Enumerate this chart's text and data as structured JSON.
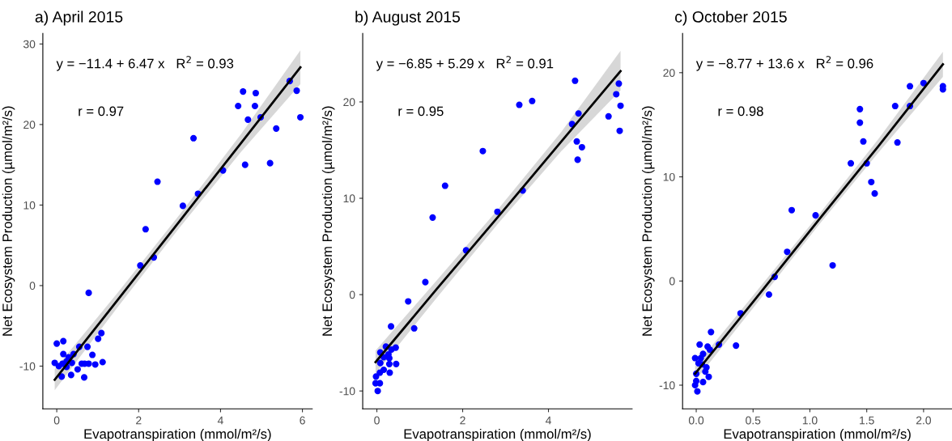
{
  "chart_data": [
    {
      "type": "scatter",
      "title": "a) April 2015",
      "xlabel": "Evapotranspiration (mmol/m²/s)",
      "ylabel": "Net Ecosystem Production (µmol/m²/s)",
      "annotations": [
        "y = −11.4 + 6.47 x   R$^{2}$ = 0.93",
        "r = 0.97"
      ],
      "xlim": [
        -0.34,
        6.24
      ],
      "ylim": [
        -15.3,
        31.3
      ],
      "xticks": [
        0,
        2,
        4,
        6
      ],
      "yticks": [
        -10,
        0,
        10,
        20,
        30
      ],
      "grid": false,
      "series": [
        {
          "marker": "circle",
          "color": "#0000ff",
          "x": [
            0.78,
            0,
            0.16,
            1.09,
            1.01,
            0.55,
            0.75,
            0.16,
            0.41,
            0.29,
            0.87,
            -0.05,
            0.05,
            0.14,
            0.24,
            0.37,
            0.24,
            0.61,
            0.68,
            0.78,
            0.94,
            1.12,
            0.51,
            0.12,
            0.35,
            0.67,
            2.04,
            2.37,
            2.17,
            2.46,
            3.08,
            3.45,
            3.34,
            4.06,
            4.43,
            4.55,
            4.6,
            4.67,
            4.86,
            4.84,
            4.98,
            5.21,
            5.36,
            5.69,
            5.86,
            5.95
          ],
          "values": [
            -0.9,
            -7.2,
            -6.9,
            -5.9,
            -6.6,
            -7.6,
            -7.6,
            -8.5,
            -8.5,
            -8.9,
            -8.6,
            -9.6,
            -10.0,
            -9.7,
            -9.4,
            -9.6,
            -10.1,
            -9.7,
            -9.7,
            -9.7,
            -9.8,
            -9.5,
            -10.4,
            -11.3,
            -11.1,
            -11.4,
            2.5,
            3.5,
            7.0,
            12.9,
            9.9,
            11.4,
            18.3,
            14.3,
            22.3,
            24.1,
            15.0,
            20.6,
            23.9,
            22.3,
            20.9,
            15.2,
            19.5,
            25.4,
            24.2,
            20.9
          ]
        },
        {
          "type": "line",
          "color": "#000000",
          "x": [
            -0.05,
            1.5,
            3,
            4.5,
            5.95
          ],
          "values": [
            -11.7,
            -1.7,
            8.0,
            17.7,
            27.1
          ],
          "lower": [
            -13.0,
            -2.6,
            7.2,
            16.6,
            25.0
          ],
          "upper": [
            -10.4,
            -0.8,
            8.8,
            18.8,
            29.2
          ]
        }
      ]
    },
    {
      "type": "scatter",
      "title": "b) August 2015",
      "xlabel": "Evapotranspiration (mmol/m²/s)",
      "ylabel": "Net Ecosystem Production (µmol/m²/s)",
      "annotations": [
        "y = −6.85 + 5.29 x   R$^{2}$ = 0.91",
        "r = 0.95"
      ],
      "xlim": [
        -0.33,
        5.95
      ],
      "ylim": [
        -11.85,
        27.1
      ],
      "xticks": [
        0,
        2,
        4
      ],
      "yticks": [
        -10,
        0,
        10,
        20
      ],
      "grid": false,
      "series": [
        {
          "marker": "circle",
          "color": "#0000ff",
          "x": [
            4.62,
            5.64,
            5.58,
            3.62,
            3.32,
            4.7,
            4.55,
            5.4,
            5.68,
            5.66,
            4.66,
            4.78,
            4.68,
            2.47,
            1.59,
            1.3,
            3.4,
            2.81,
            2.08,
            1.13,
            0.73,
            0.87,
            0.33,
            0.21,
            0.44,
            0.34,
            0.08,
            0.27,
            0.16,
            0.29,
            0.08,
            0.29,
            0.45,
            0.16,
            0.07,
            0.3,
            -0.02,
            -0.03,
            0.07,
            0.02
          ],
          "values": [
            22.2,
            21.9,
            20.8,
            20.1,
            19.7,
            18.8,
            17.7,
            18.5,
            19.6,
            17.0,
            15.9,
            15.3,
            14.0,
            14.9,
            11.3,
            8.0,
            10.8,
            8.6,
            4.6,
            1.3,
            -0.7,
            -3.5,
            -3.3,
            -5.4,
            -5.5,
            -5.7,
            -6.0,
            -6.2,
            -6.5,
            -6.6,
            -7.1,
            -7.2,
            -7.2,
            -7.8,
            -8.1,
            -8.1,
            -8.5,
            -9.2,
            -9.2,
            -10.0
          ]
        },
        {
          "type": "line",
          "color": "#000000",
          "x": [
            -0.03,
            1.4,
            2.85,
            4.3,
            5.68
          ],
          "values": [
            -7.0,
            0.6,
            8.2,
            15.9,
            23.2
          ],
          "lower": [
            -8.2,
            -0.3,
            7.5,
            14.9,
            21.2
          ],
          "upper": [
            -5.8,
            1.5,
            9.0,
            16.9,
            25.3
          ]
        }
      ]
    },
    {
      "type": "scatter",
      "title": "c) October 2015",
      "xlabel": "Evapotranspiration (mmol/m²/s)",
      "ylabel": "Net Ecosystem Production (µmol/m²/s)",
      "annotations": [
        "y = −8.77 + 13.6 x   R$^{2}$ = 0.96",
        "r = 0.98"
      ],
      "xlim": [
        -0.12,
        2.25
      ],
      "ylim": [
        -12.27,
        23.76
      ],
      "xticks": [
        {
          "value": 0,
          "label": "0.0"
        },
        0.5,
        {
          "value": 1,
          "label": "1.0"
        },
        1.5,
        {
          "value": 2,
          "label": "2.0"
        }
      ],
      "yticks": [
        -10,
        0,
        10,
        20
      ],
      "grid": false,
      "series": [
        {
          "marker": "circle",
          "color": "#0000ff",
          "x": [
            2.0,
            1.88,
            2.17,
            2.17,
            1.75,
            1.88,
            1.44,
            1.44,
            1.47,
            1.77,
            1.36,
            1.5,
            1.54,
            1.57,
            0.84,
            1.05,
            0.8,
            1.2,
            0.69,
            0.64,
            0.39,
            0.35,
            0.13,
            0.2,
            0.03,
            0.1,
            0.12,
            0.06,
            -0.01,
            0.04,
            0.02,
            0.05,
            0.09,
            0.08,
            0.11,
            0.0,
            0.0,
            0.06,
            -0.01,
            0.01
          ],
          "values": [
            19.0,
            18.7,
            18.7,
            18.4,
            16.8,
            16.8,
            16.5,
            15.2,
            13.4,
            13.3,
            11.3,
            11.3,
            9.5,
            8.4,
            6.8,
            6.3,
            2.8,
            1.5,
            0.4,
            -1.3,
            -3.1,
            -6.2,
            -4.9,
            -6.1,
            -6.1,
            -6.3,
            -6.6,
            -7.0,
            -7.4,
            -7.4,
            -7.9,
            -8.0,
            -8.3,
            -8.7,
            -9.2,
            -8.9,
            -9.6,
            -9.7,
            -10.0,
            -10.6
          ]
        },
        {
          "type": "line",
          "color": "#000000",
          "x": [
            -0.01,
            0.5,
            1.08,
            1.6,
            2.17
          ],
          "values": [
            -8.9,
            -2.0,
            5.9,
            12.9,
            20.8
          ],
          "lower": [
            -9.6,
            -2.6,
            5.4,
            12.3,
            19.6
          ],
          "upper": [
            -8.2,
            -1.4,
            6.4,
            13.6,
            22.0
          ]
        }
      ]
    }
  ]
}
